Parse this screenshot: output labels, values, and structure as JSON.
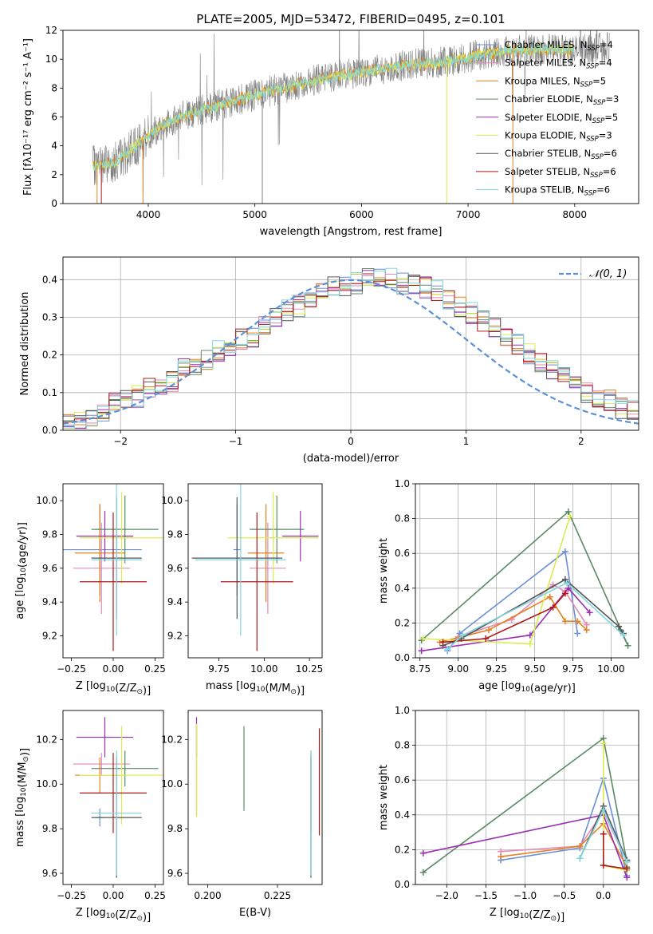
{
  "figure": {
    "title": "PLATE=2005, MJD=53472, FIBERID=0495, z=0.101"
  },
  "models": [
    {
      "name": "Chabrier MILES",
      "nssp": "4",
      "color": "#6b8fd6"
    },
    {
      "name": "Salpeter MILES",
      "nssp": "4",
      "color": "#e58ab8"
    },
    {
      "name": "Kroupa MILES",
      "nssp": "5",
      "color": "#e8801f"
    },
    {
      "name": "Chabrier ELODIE",
      "nssp": "3",
      "color": "#5a8a64"
    },
    {
      "name": "Salpeter ELODIE",
      "nssp": "5",
      "color": "#9a2fb0"
    },
    {
      "name": "Kroupa ELODIE",
      "nssp": "3",
      "color": "#d9ec50"
    },
    {
      "name": "Chabrier STELIB",
      "nssp": "6",
      "color": "#555555"
    },
    {
      "name": "Salpeter STELIB",
      "nssp": "6",
      "color": "#b01818"
    },
    {
      "name": "Kroupa STELIB",
      "nssp": "6",
      "color": "#7fd8e0"
    }
  ],
  "chart_data": [
    {
      "id": "spectrum",
      "type": "line",
      "xlabel": "wavelength [Angstrom, rest frame]",
      "ylabel": "Flux [fλ10⁻¹⁷ erg cm⁻² s⁻¹ A⁻¹]",
      "xlim": [
        3200,
        8600
      ],
      "ylim": [
        0,
        12
      ],
      "xticks": [
        4000,
        5000,
        6000,
        7000,
        8000
      ],
      "yticks": [
        0,
        2,
        4,
        6,
        8,
        10,
        12
      ],
      "data_color": "#808080",
      "model_color": "#7fd8e0",
      "continuum_x": [
        3500,
        3700,
        3950,
        4100,
        4300,
        4600,
        4900,
        5200,
        5600,
        6000,
        6400,
        6800,
        7100,
        7400,
        7700,
        8000,
        8300
      ],
      "continuum_y": [
        2.6,
        2.9,
        4.4,
        5.3,
        6.0,
        6.7,
        7.3,
        7.9,
        8.6,
        9.1,
        9.6,
        9.8,
        10.3,
        10.6,
        10.7,
        10.6,
        10.8
      ],
      "legend_position": "upper right"
    },
    {
      "id": "residuals",
      "type": "line",
      "xlabel": "(data-model)/error",
      "ylabel": "Normed distribution",
      "xlim": [
        -2.5,
        2.5
      ],
      "ylim": [
        0,
        0.46
      ],
      "xticks": [
        -2,
        -1,
        0,
        1,
        2
      ],
      "yticks": [
        0.0,
        0.1,
        0.2,
        0.3,
        0.4
      ],
      "grid": true,
      "legend": "N(0,1)",
      "legend_position": "upper right",
      "bin_width": 0.1,
      "bins_start": -2.5,
      "base_hist": [
        0.02,
        0.02,
        0.03,
        0.05,
        0.07,
        0.08,
        0.09,
        0.11,
        0.12,
        0.13,
        0.16,
        0.17,
        0.19,
        0.21,
        0.22,
        0.24,
        0.25,
        0.28,
        0.3,
        0.32,
        0.33,
        0.35,
        0.37,
        0.38,
        0.38,
        0.39,
        0.4,
        0.4,
        0.4,
        0.39,
        0.39,
        0.38,
        0.37,
        0.35,
        0.33,
        0.31,
        0.29,
        0.27,
        0.25,
        0.23,
        0.2,
        0.18,
        0.16,
        0.14,
        0.12,
        0.1,
        0.09,
        0.08,
        0.06,
        0.05
      ]
    },
    {
      "id": "age-z",
      "type": "scatter",
      "xlabel": "Z [log10(Z/Z⊙)]",
      "ylabel": "age [log10(age/yr)]",
      "xlim": [
        -0.3,
        0.3
      ],
      "ylim": [
        9.07,
        10.1
      ],
      "xticks": [
        -0.25,
        0.0,
        0.25
      ],
      "xticklabels": [
        "−0.25",
        "0.00",
        "0.25"
      ],
      "yticks": [
        9.2,
        9.4,
        9.6,
        9.8,
        10.0
      ],
      "points": [
        {
          "x": -0.08,
          "y": 9.71,
          "xerr": 0.25,
          "yerr": 0.27
        },
        {
          "x": -0.07,
          "y": 9.6,
          "xerr": 0.17,
          "yerr": 0.27
        },
        {
          "x": -0.08,
          "y": 9.69,
          "xerr": 0.15,
          "yerr": 0.29
        },
        {
          "x": 0.07,
          "y": 9.83,
          "xerr": 0.2,
          "yerr": 0.2
        },
        {
          "x": -0.05,
          "y": 9.79,
          "xerr": 0.17,
          "yerr": 0.15
        },
        {
          "x": 0.05,
          "y": 9.78,
          "xerr": 0.25,
          "yerr": 0.27
        },
        {
          "x": 0.02,
          "y": 9.66,
          "xerr": 0.15,
          "yerr": 0.36
        },
        {
          "x": 0.0,
          "y": 9.52,
          "xerr": 0.2,
          "yerr": 0.41
        },
        {
          "x": 0.02,
          "y": 9.65,
          "xerr": 0.15,
          "yerr": 0.45
        }
      ]
    },
    {
      "id": "age-mass",
      "type": "scatter",
      "xlabel": "mass [log10(M/M⊙)]",
      "ylabel": "",
      "xlim": [
        9.58,
        10.32
      ],
      "ylim": [
        9.07,
        10.1
      ],
      "xticks": [
        9.75,
        10.0,
        10.25
      ],
      "xticklabels": [
        "9.75",
        "10.00",
        "10.25"
      ],
      "yticks": [
        9.2,
        9.4,
        9.6,
        9.8,
        10.0
      ],
      "points": [
        {
          "x": 9.85,
          "y": 9.71,
          "xerr": 0.02,
          "yerr": 0.27
        },
        {
          "x": 10.02,
          "y": 9.6,
          "xerr": 0.1,
          "yerr": 0.27
        },
        {
          "x": 10.01,
          "y": 9.69,
          "xerr": 0.1,
          "yerr": 0.29
        },
        {
          "x": 10.07,
          "y": 9.83,
          "xerr": 0.15,
          "yerr": 0.2
        },
        {
          "x": 10.2,
          "y": 9.79,
          "xerr": 0.1,
          "yerr": 0.15
        },
        {
          "x": 10.05,
          "y": 9.78,
          "xerr": 0.25,
          "yerr": 0.27
        },
        {
          "x": 9.85,
          "y": 9.66,
          "xerr": 0.25,
          "yerr": 0.36
        },
        {
          "x": 9.96,
          "y": 9.52,
          "xerr": 0.2,
          "yerr": 0.41
        },
        {
          "x": 9.87,
          "y": 9.65,
          "xerr": 0.25,
          "yerr": 0.45
        }
      ]
    },
    {
      "id": "weight-age",
      "type": "line",
      "xlabel": "age [log10(age/yr)]",
      "ylabel": "mass weight",
      "xlim": [
        8.72,
        10.18
      ],
      "ylim": [
        0,
        1
      ],
      "xticks": [
        8.75,
        9.0,
        9.25,
        9.5,
        9.75,
        10.0
      ],
      "xticklabels": [
        "8.75",
        "9.00",
        "9.25",
        "9.50",
        "9.75",
        "10.00"
      ],
      "yticks": [
        0.0,
        0.2,
        0.4,
        0.6,
        0.8,
        1.0
      ],
      "grid": true,
      "series": [
        {
          "x": [
            8.93,
            9.01,
            9.7,
            9.78
          ],
          "y": [
            0.04,
            0.14,
            0.61,
            0.14
          ]
        },
        {
          "x": [
            9.0,
            9.35,
            9.62,
            9.7,
            9.84
          ],
          "y": [
            0.12,
            0.22,
            0.42,
            0.38,
            0.19
          ]
        },
        {
          "x": [
            8.88,
            9.2,
            9.6,
            9.7,
            9.78,
            9.84
          ],
          "y": [
            0.09,
            0.16,
            0.35,
            0.21,
            0.21,
            0.16
          ]
        },
        {
          "x": [
            8.76,
            9.72,
            10.11,
            10.06
          ],
          "y": [
            0.1,
            0.84,
            0.07,
            0.16
          ]
        },
        {
          "x": [
            8.76,
            9.47,
            9.72,
            9.86
          ],
          "y": [
            0.04,
            0.13,
            0.4,
            0.26
          ]
        },
        {
          "x": [
            8.77,
            9.47,
            9.73
          ],
          "y": [
            0.11,
            0.08,
            0.81
          ]
        },
        {
          "x": [
            8.9,
            9.02,
            9.7,
            10.05,
            10.08
          ],
          "y": [
            0.07,
            0.11,
            0.45,
            0.18,
            0.14
          ]
        },
        {
          "x": [
            8.9,
            9.18,
            9.62,
            9.7
          ],
          "y": [
            0.09,
            0.11,
            0.29,
            0.37
          ]
        },
        {
          "x": [
            8.93,
            9.03,
            9.71,
            10.08
          ],
          "y": [
            0.05,
            0.13,
            0.43,
            0.13
          ]
        }
      ]
    },
    {
      "id": "mass-z",
      "type": "scatter",
      "xlabel": "Z [log10(Z/Z⊙)]",
      "ylabel": "mass [log10(M/M⊙)]",
      "xlim": [
        -0.3,
        0.3
      ],
      "ylim": [
        9.55,
        10.33
      ],
      "xticks": [
        -0.25,
        0.0,
        0.25
      ],
      "xticklabels": [
        "−0.25",
        "0.00",
        "0.25"
      ],
      "yticks": [
        9.6,
        9.8,
        10.0,
        10.2
      ],
      "points": [
        {
          "x": -0.08,
          "y": 9.85,
          "xerr": 0.02,
          "yerr": 0.04
        },
        {
          "x": -0.07,
          "y": 10.09,
          "xerr": 0.17,
          "yerr": 0.05
        },
        {
          "x": -0.08,
          "y": 10.04,
          "xerr": 0.15,
          "yerr": 0.08
        },
        {
          "x": 0.07,
          "y": 10.07,
          "xerr": 0.2,
          "yerr": 0.08
        },
        {
          "x": -0.05,
          "y": 10.21,
          "xerr": 0.17,
          "yerr": 0.09
        },
        {
          "x": 0.05,
          "y": 10.04,
          "xerr": 0.25,
          "yerr": 0.22
        },
        {
          "x": 0.02,
          "y": 9.85,
          "xerr": 0.15,
          "yerr": 0.27
        },
        {
          "x": 0.0,
          "y": 9.96,
          "xerr": 0.2,
          "yerr": 0.18
        },
        {
          "x": 0.02,
          "y": 9.87,
          "xerr": 0.15,
          "yerr": 0.28
        }
      ]
    },
    {
      "id": "mass-ebv",
      "type": "scatter",
      "xlabel": "E(B-V)",
      "ylabel": "",
      "xlim": [
        0.193,
        0.241
      ],
      "ylim": [
        9.55,
        10.33
      ],
      "xticks": [
        0.2,
        0.225
      ],
      "xticklabels": [
        "0.200",
        "0.225"
      ],
      "yticks": [
        9.6,
        9.8,
        10.0,
        10.2
      ],
      "points": [
        {
          "x": 0.237,
          "y": 9.87,
          "yerr": 0.28
        },
        {
          "x": 0.237,
          "y": 9.96,
          "yerr": 0.18
        },
        {
          "x": 0.196,
          "y": 10.06,
          "yerr": 0.2
        },
        {
          "x": 0.213,
          "y": 10.07,
          "yerr": 0.19
        },
        {
          "x": 0.196,
          "y": 10.21,
          "yerr": 0.09
        },
        {
          "x": 0.196,
          "y": 10.06,
          "yerr": 0.21
        },
        {
          "x": 0.237,
          "y": 9.85,
          "yerr": 0.27
        },
        {
          "x": 0.24,
          "y": 10.01,
          "yerr": 0.24
        },
        {
          "x": 0.237,
          "y": 9.87,
          "yerr": 0.28
        }
      ]
    },
    {
      "id": "weight-z",
      "type": "line",
      "xlabel": "Z [log10(Z/Z⊙)]",
      "ylabel": "mass weight",
      "xlim": [
        -2.4,
        0.45
      ],
      "ylim": [
        0,
        1
      ],
      "xticks": [
        -2.0,
        -1.5,
        -1.0,
        -0.5,
        0.0
      ],
      "xticklabels": [
        "−2.0",
        "−1.5",
        "−1.0",
        "−0.5",
        "0.0"
      ],
      "yticks": [
        0.0,
        0.2,
        0.4,
        0.6,
        0.8,
        1.0
      ],
      "grid": true,
      "series": [
        {
          "x": [
            -1.31,
            -0.3,
            0.0,
            0.3
          ],
          "y": [
            0.14,
            0.21,
            0.61,
            0.05
          ]
        },
        {
          "x": [
            -1.31,
            -0.3,
            0.0,
            0.3
          ],
          "y": [
            0.19,
            0.22,
            0.42,
            0.13
          ]
        },
        {
          "x": [
            -1.31,
            -0.3,
            0.0,
            0.3
          ],
          "y": [
            0.16,
            0.22,
            0.35,
            0.1
          ]
        },
        {
          "x": [
            -2.3,
            0.0,
            0.3,
            0.3
          ],
          "y": [
            0.07,
            0.84,
            0.13,
            0.1
          ]
        },
        {
          "x": [
            -2.3,
            0.0,
            0.3
          ],
          "y": [
            0.18,
            0.4,
            0.04
          ]
        },
        {
          "x": [
            0.0,
            0.0,
            0.3
          ],
          "y": [
            0.81,
            0.11,
            0.08
          ]
        },
        {
          "x": [
            -0.3,
            0.0,
            0.3
          ],
          "y": [
            0.15,
            0.45,
            0.14
          ]
        },
        {
          "x": [
            0.0,
            0.0,
            0.3
          ],
          "y": [
            0.29,
            0.11,
            0.09
          ]
        },
        {
          "x": [
            -0.3,
            0.0,
            0.3
          ],
          "y": [
            0.15,
            0.43,
            0.13
          ]
        }
      ]
    }
  ]
}
